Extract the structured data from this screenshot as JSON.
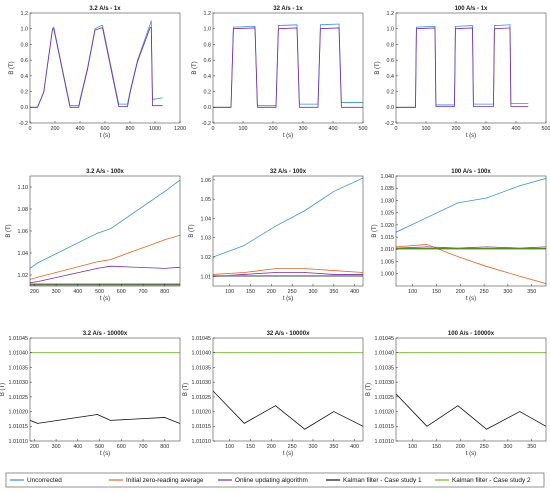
{
  "colors": {
    "uncorrected": "#3a8fd6",
    "zero_avg": "#e0672a",
    "online": "#7b2da0",
    "kalman1": "#111111",
    "kalman2": "#73b12a"
  },
  "legend": [
    {
      "key": "uncorrected",
      "label": "Uncorrected"
    },
    {
      "key": "zero_avg",
      "label": "Initial zero-reading average"
    },
    {
      "key": "online",
      "label": "Online updating algorithm"
    },
    {
      "key": "kalman1",
      "label": "Kalman filter - Case study 1"
    },
    {
      "key": "kalman2",
      "label": "Kalman filter - Case study 2"
    }
  ],
  "chart_data": [
    {
      "type": "line",
      "title": "3.2 A/s - 1x",
      "xlabel": "t (s)",
      "ylabel": "B (T)",
      "xlim": [
        0,
        1200
      ],
      "ylim": [
        -0.2,
        1.2
      ],
      "xticks": [
        0,
        200,
        400,
        600,
        800,
        1000,
        1200
      ],
      "yticks": [
        -0.2,
        0,
        0.2,
        0.4,
        0.6,
        0.8,
        1.0,
        1.2
      ],
      "ytick_labels": [
        "-0.2",
        "0.0",
        "0.2",
        "0.4",
        "0.6",
        "0.8",
        "1.0",
        "1.2"
      ],
      "series": [
        {
          "key": "uncorrected",
          "x": [
            0,
            60,
            110,
            180,
            190,
            320,
            330,
            390,
            400,
            460,
            520,
            570,
            580,
            710,
            720,
            780,
            800,
            860,
            960,
            970,
            980,
            1060
          ],
          "y": [
            0,
            0,
            0.2,
            1.0,
            1.02,
            0.02,
            0.02,
            0.02,
            0.1,
            0.5,
            1.0,
            1.04,
            1.04,
            0.04,
            0.04,
            0.04,
            0.2,
            0.6,
            1.05,
            1.1,
            0.1,
            0.12
          ]
        },
        {
          "key": "online",
          "x": [
            0,
            60,
            110,
            180,
            190,
            320,
            330,
            390,
            400,
            460,
            520,
            570,
            580,
            710,
            720,
            780,
            800,
            860,
            960,
            970,
            980,
            1060
          ],
          "y": [
            0,
            0,
            0.19,
            0.99,
            1.0,
            0.0,
            0.0,
            0.0,
            0.08,
            0.48,
            0.98,
            1.01,
            1.01,
            0.01,
            0.01,
            0.01,
            0.18,
            0.58,
            1.01,
            1.02,
            0.02,
            0.02
          ]
        }
      ]
    },
    {
      "type": "line",
      "title": "32 A/s - 1x",
      "xlabel": "t (s)",
      "ylabel": "B (T)",
      "xlim": [
        0,
        500
      ],
      "ylim": [
        -0.2,
        1.2
      ],
      "xticks": [
        0,
        100,
        200,
        300,
        400,
        500
      ],
      "yticks": [
        -0.2,
        0,
        0.2,
        0.4,
        0.6,
        0.8,
        1.0,
        1.2
      ],
      "ytick_labels": [
        "-0.2",
        "0.0",
        "0.2",
        "0.4",
        "0.6",
        "0.8",
        "1.0",
        "1.2"
      ],
      "series": [
        {
          "key": "uncorrected",
          "x": [
            0,
            60,
            68,
            140,
            148,
            210,
            218,
            280,
            288,
            350,
            358,
            420,
            428,
            500
          ],
          "y": [
            0,
            0,
            1.02,
            1.03,
            0.02,
            0.02,
            1.04,
            1.05,
            0.04,
            0.04,
            1.05,
            1.06,
            0.06,
            0.06
          ]
        },
        {
          "key": "online",
          "x": [
            0,
            60,
            68,
            140,
            148,
            210,
            218,
            280,
            288,
            350,
            358,
            420,
            428,
            500
          ],
          "y": [
            0,
            0,
            1.0,
            1.01,
            0.0,
            0.0,
            1.0,
            1.01,
            0.0,
            0.0,
            1.0,
            1.01,
            0.0,
            0.0
          ]
        }
      ]
    },
    {
      "type": "line",
      "title": "100 A/s - 1x",
      "xlabel": "t (s)",
      "ylabel": "B (T)",
      "xlim": [
        0,
        500
      ],
      "ylim": [
        -0.2,
        1.2
      ],
      "xticks": [
        0,
        100,
        200,
        300,
        400,
        500
      ],
      "yticks": [
        -0.2,
        0,
        0.2,
        0.4,
        0.6,
        0.8,
        1.0,
        1.2
      ],
      "ytick_labels": [
        "-0.2",
        "0.0",
        "0.2",
        "0.4",
        "0.6",
        "0.8",
        "1.0",
        "1.2"
      ],
      "series": [
        {
          "key": "uncorrected",
          "x": [
            0,
            65,
            68,
            130,
            133,
            195,
            198,
            255,
            258,
            325,
            328,
            380,
            383,
            440
          ],
          "y": [
            0,
            0,
            1.02,
            1.03,
            0.03,
            0.03,
            1.03,
            1.04,
            0.04,
            0.04,
            1.04,
            1.05,
            0.05,
            0.05
          ]
        },
        {
          "key": "online",
          "x": [
            0,
            65,
            68,
            130,
            133,
            195,
            198,
            255,
            258,
            325,
            328,
            380,
            383,
            440
          ],
          "y": [
            0,
            0,
            1.0,
            1.01,
            0.01,
            0.01,
            1.0,
            1.01,
            0.01,
            0.01,
            1.0,
            1.01,
            0.01,
            0.01
          ]
        }
      ]
    },
    {
      "type": "line",
      "title": "3.2 A/s - 100x",
      "xlabel": "t (s)",
      "ylabel": "B (T)",
      "xlim": [
        180,
        870
      ],
      "ylim": [
        1.01,
        1.11
      ],
      "xticks": [
        200,
        300,
        400,
        500,
        600,
        700,
        800
      ],
      "yticks": [
        1.02,
        1.04,
        1.06,
        1.08,
        1.1
      ],
      "ytick_labels": [
        "1.02",
        "1.04",
        "1.06",
        "1.08",
        "1.10"
      ],
      "series": [
        {
          "key": "uncorrected",
          "x": [
            180,
            215,
            490,
            550,
            800,
            868
          ],
          "y": [
            1.026,
            1.031,
            1.058,
            1.062,
            1.096,
            1.106
          ]
        },
        {
          "key": "zero_avg",
          "x": [
            180,
            215,
            490,
            550,
            800,
            868
          ],
          "y": [
            1.016,
            1.018,
            1.032,
            1.034,
            1.052,
            1.056
          ]
        },
        {
          "key": "online",
          "x": [
            180,
            215,
            490,
            550,
            800,
            868
          ],
          "y": [
            1.013,
            1.014,
            1.026,
            1.028,
            1.026,
            1.027
          ]
        },
        {
          "key": "kalman1",
          "x": [
            180,
            215,
            490,
            550,
            800,
            868
          ],
          "y": [
            1.011,
            1.011,
            1.011,
            1.011,
            1.011,
            1.011
          ]
        },
        {
          "key": "kalman2",
          "x": [
            180,
            215,
            490,
            550,
            800,
            868
          ],
          "y": [
            1.012,
            1.012,
            1.012,
            1.012,
            1.012,
            1.012
          ]
        }
      ]
    },
    {
      "type": "line",
      "title": "32 A/s - 100x",
      "xlabel": "t (s)",
      "ylabel": "B (T)",
      "xlim": [
        60,
        420
      ],
      "ylim": [
        1.005,
        1.062
      ],
      "xticks": [
        100,
        150,
        200,
        250,
        300,
        350,
        400
      ],
      "yticks": [
        1.01,
        1.02,
        1.03,
        1.04,
        1.05,
        1.06
      ],
      "ytick_labels": [
        "1.01",
        "1.02",
        "1.03",
        "1.04",
        "1.05",
        "1.06"
      ],
      "series": [
        {
          "key": "uncorrected",
          "x": [
            60,
            135,
            210,
            280,
            350,
            420
          ],
          "y": [
            1.02,
            1.026,
            1.036,
            1.044,
            1.054,
            1.061
          ]
        },
        {
          "key": "zero_avg",
          "x": [
            60,
            135,
            210,
            280,
            350,
            420
          ],
          "y": [
            1.011,
            1.012,
            1.014,
            1.014,
            1.013,
            1.012
          ]
        },
        {
          "key": "online",
          "x": [
            60,
            135,
            210,
            280,
            350,
            420
          ],
          "y": [
            1.01,
            1.011,
            1.012,
            1.012,
            1.011,
            1.011
          ]
        },
        {
          "key": "kalman1",
          "x": [
            60,
            135,
            210,
            280,
            350,
            420
          ],
          "y": [
            1.0102,
            1.0102,
            1.0102,
            1.0102,
            1.0102,
            1.0102
          ]
        },
        {
          "key": "kalman2",
          "x": [
            60,
            135,
            210,
            280,
            350,
            420
          ],
          "y": [
            1.0104,
            1.0104,
            1.0104,
            1.0104,
            1.0104,
            1.0104
          ]
        }
      ]
    },
    {
      "type": "line",
      "title": "100 A/s - 100x",
      "xlabel": "t (s)",
      "ylabel": "B (T)",
      "xlim": [
        65,
        380
      ],
      "ylim": [
        0.995,
        1.04
      ],
      "xticks": [
        100,
        150,
        200,
        250,
        300,
        350
      ],
      "yticks": [
        1.0,
        1.005,
        1.01,
        1.015,
        1.02,
        1.025,
        1.03,
        1.035,
        1.04
      ],
      "ytick_labels": [
        "1.000",
        "1.005",
        "1.010",
        "1.015",
        "1.020",
        "1.025",
        "1.030",
        "1.035",
        "1.040"
      ],
      "series": [
        {
          "key": "uncorrected",
          "x": [
            65,
            130,
            195,
            255,
            325,
            380
          ],
          "y": [
            1.017,
            1.023,
            1.029,
            1.031,
            1.036,
            1.039
          ]
        },
        {
          "key": "zero_avg",
          "x": [
            65,
            130,
            195,
            255,
            325,
            380
          ],
          "y": [
            1.011,
            1.012,
            1.007,
            1.003,
            0.999,
            0.996
          ]
        },
        {
          "key": "online",
          "x": [
            65,
            130,
            195,
            255,
            325,
            380
          ],
          "y": [
            1.0105,
            1.011,
            1.0105,
            1.011,
            1.0105,
            1.011
          ]
        },
        {
          "key": "kalman1",
          "x": [
            65,
            130,
            195,
            255,
            325,
            380
          ],
          "y": [
            1.0102,
            1.0102,
            1.0102,
            1.0102,
            1.0102,
            1.0102
          ]
        },
        {
          "key": "kalman2",
          "x": [
            65,
            130,
            195,
            255,
            325,
            380
          ],
          "y": [
            1.0104,
            1.0104,
            1.0104,
            1.0104,
            1.0104,
            1.0104
          ]
        }
      ]
    },
    {
      "type": "line",
      "title": "3.2 A/s - 10000x",
      "xlabel": "t (s)",
      "ylabel": "B (T)",
      "xlim": [
        180,
        870
      ],
      "ylim": [
        1.0101,
        1.01045
      ],
      "xticks": [
        200,
        300,
        400,
        500,
        600,
        700,
        800
      ],
      "yticks": [
        1.0101,
        1.01015,
        1.0102,
        1.01025,
        1.0103,
        1.01035,
        1.0104,
        1.01045
      ],
      "ytick_labels": [
        "1.01010",
        "1.01015",
        "1.01020",
        "1.01025",
        "1.01030",
        "1.01035",
        "1.01040",
        "1.01045"
      ],
      "series": [
        {
          "key": "kalman1",
          "x": [
            180,
            215,
            490,
            550,
            800,
            868
          ],
          "y": [
            1.01017,
            1.01016,
            1.01019,
            1.01017,
            1.01018,
            1.01016
          ]
        },
        {
          "key": "kalman2",
          "x": [
            180,
            215,
            490,
            550,
            800,
            868
          ],
          "y": [
            1.0104,
            1.0104,
            1.0104,
            1.0104,
            1.0104,
            1.0104
          ]
        }
      ]
    },
    {
      "type": "line",
      "title": "32 A/s - 10000x",
      "xlabel": "t (s)",
      "ylabel": "B (T)",
      "xlim": [
        60,
        420
      ],
      "ylim": [
        1.0101,
        1.01045
      ],
      "xticks": [
        100,
        150,
        200,
        250,
        300,
        350,
        400
      ],
      "yticks": [
        1.0101,
        1.01015,
        1.0102,
        1.01025,
        1.0103,
        1.01035,
        1.0104,
        1.01045
      ],
      "ytick_labels": [
        "1.01010",
        "1.01015",
        "1.01020",
        "1.01025",
        "1.01030",
        "1.01035",
        "1.01040",
        "1.01045"
      ],
      "series": [
        {
          "key": "kalman1",
          "x": [
            60,
            135,
            210,
            280,
            350,
            420
          ],
          "y": [
            1.01027,
            1.01016,
            1.01022,
            1.01014,
            1.0102,
            1.01015
          ]
        },
        {
          "key": "kalman2",
          "x": [
            60,
            135,
            210,
            280,
            350,
            420
          ],
          "y": [
            1.0104,
            1.0104,
            1.0104,
            1.0104,
            1.0104,
            1.0104
          ]
        }
      ]
    },
    {
      "type": "line",
      "title": "100 A/s - 10000x",
      "xlabel": "t (s)",
      "ylabel": "B (T)",
      "xlim": [
        65,
        380
      ],
      "ylim": [
        1.0101,
        1.01045
      ],
      "xticks": [
        100,
        150,
        200,
        250,
        300,
        350
      ],
      "yticks": [
        1.0101,
        1.01015,
        1.0102,
        1.01025,
        1.0103,
        1.01035,
        1.0104,
        1.01045
      ],
      "ytick_labels": [
        "1.01010",
        "1.01015",
        "1.01020",
        "1.01025",
        "1.01030",
        "1.01035",
        "1.01040",
        "1.01045"
      ],
      "series": [
        {
          "key": "kalman1",
          "x": [
            65,
            130,
            195,
            255,
            325,
            380
          ],
          "y": [
            1.01026,
            1.01015,
            1.01022,
            1.01014,
            1.0102,
            1.01015
          ]
        },
        {
          "key": "kalman2",
          "x": [
            65,
            130,
            195,
            255,
            325,
            380
          ],
          "y": [
            1.0104,
            1.0104,
            1.0104,
            1.0104,
            1.0104,
            1.0104
          ]
        }
      ]
    }
  ]
}
